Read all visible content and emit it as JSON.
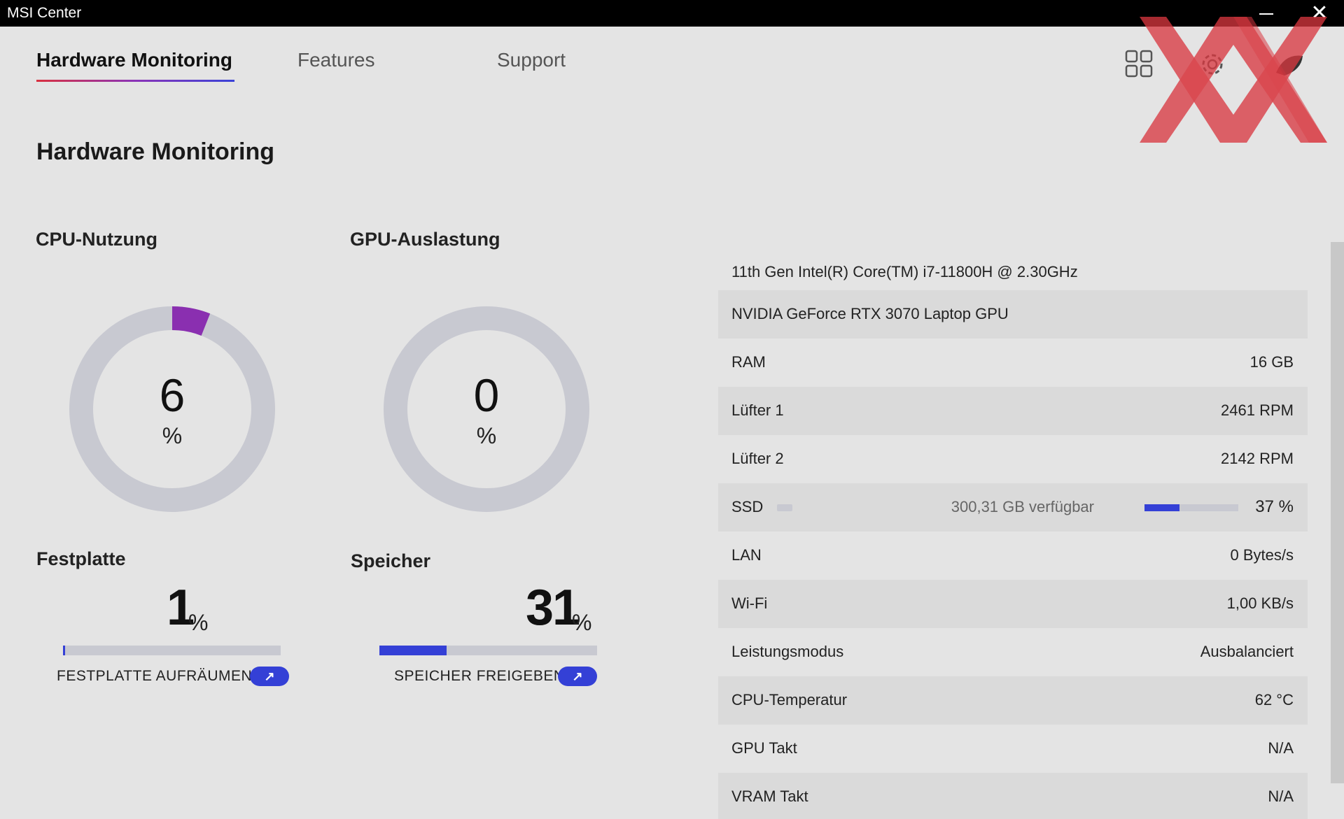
{
  "window": {
    "title": "MSI Center"
  },
  "nav": {
    "tabs": [
      {
        "label": "Hardware Monitoring",
        "active": true
      },
      {
        "label": "Features",
        "active": false
      },
      {
        "label": "Support",
        "active": false
      }
    ],
    "icons": [
      "grid-icon",
      "gear-icon",
      "profile-icon"
    ]
  },
  "page": {
    "title": "Hardware Monitoring"
  },
  "cpu": {
    "label": "CPU-Nutzung",
    "value": "6",
    "unit": "%",
    "percent": 6
  },
  "gpu": {
    "label": "GPU-Auslastung",
    "value": "0",
    "unit": "%",
    "percent": 0
  },
  "disk": {
    "label": "Festplatte",
    "value": "1",
    "unit": "%",
    "percent": 1,
    "action": "FESTPLATTE AUFRÄUMEN"
  },
  "memory": {
    "label": "Speicher",
    "value": "31",
    "unit": "%",
    "percent": 31,
    "action": "SPEICHER FREIGEBEN"
  },
  "info": {
    "cpu_name": "11th Gen Intel(R) Core(TM) i7-11800H @ 2.30GHz",
    "gpu_name": "NVIDIA GeForce RTX 3070 Laptop GPU",
    "rows": [
      {
        "key": "RAM",
        "value": "16 GB"
      },
      {
        "key": "Lüfter 1",
        "value": "2461 RPM"
      },
      {
        "key": "Lüfter 2",
        "value": "2142 RPM"
      }
    ],
    "ssd": {
      "key": "SSD",
      "free": "300,31 GB verfügbar",
      "percent_label": "37 %",
      "percent": 37
    },
    "rows2": [
      {
        "key": "LAN",
        "value": "0 Bytes/s"
      },
      {
        "key": "Wi-Fi",
        "value": "1,00 KB/s"
      },
      {
        "key": "Leistungsmodus",
        "value": "Ausbalanciert"
      },
      {
        "key": "CPU-Temperatur",
        "value": "62 °C"
      },
      {
        "key": "GPU Takt",
        "value": "N/A"
      },
      {
        "key": "VRAM Takt",
        "value": "N/A"
      }
    ]
  },
  "colors": {
    "accent": "#3440d6",
    "cpu_arc": "#8a2fb0",
    "track": "#c8c9d1",
    "background": "#e4e4e4"
  }
}
